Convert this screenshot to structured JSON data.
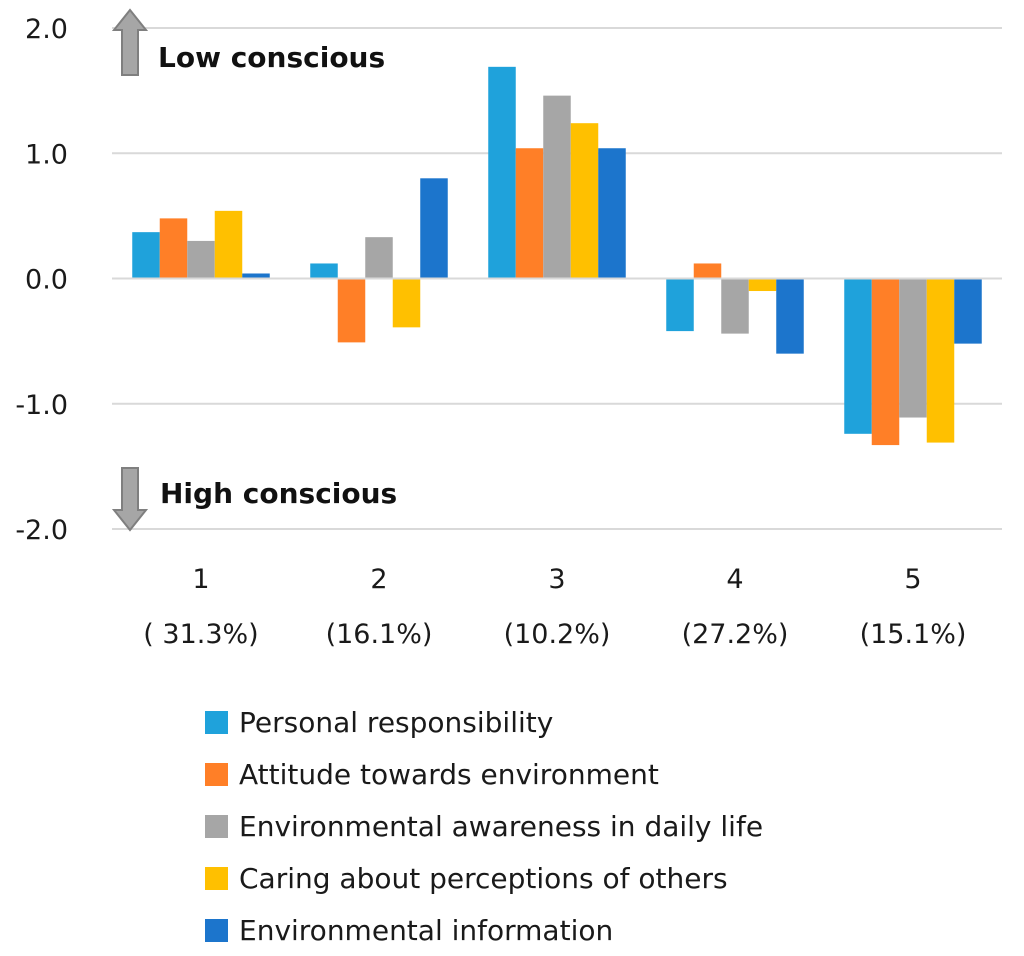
{
  "chart_data": {
    "type": "bar",
    "title": "",
    "xlabel": "",
    "ylabel": "",
    "ylim": [
      -2.0,
      2.0
    ],
    "yticks": [
      2.0,
      1.0,
      0.0,
      -1.0,
      -2.0
    ],
    "ytick_labels": [
      "2.0",
      "1.0",
      "0.0",
      "-1.0",
      "-2.0"
    ],
    "grid": true,
    "legend_position": "bottom",
    "categories": [
      {
        "name": "1",
        "share": "( 31.3%)"
      },
      {
        "name": "2",
        "share": "(16.1%)"
      },
      {
        "name": "3",
        "share": "(10.2%)"
      },
      {
        "name": "4",
        "share": "(27.2%)"
      },
      {
        "name": "5",
        "share": "(15.1%)"
      }
    ],
    "series": [
      {
        "name": "Personal responsibility",
        "color": "#1FA2DB",
        "values": [
          0.37,
          0.12,
          1.69,
          -0.42,
          -1.24
        ]
      },
      {
        "name": "Attitude towards environment",
        "color": "#FF7F27",
        "values": [
          0.48,
          -0.51,
          1.04,
          0.12,
          -1.33
        ]
      },
      {
        "name": "Environmental awareness in daily life",
        "color": "#A6A6A6",
        "values": [
          0.3,
          0.33,
          1.46,
          -0.44,
          -1.11
        ]
      },
      {
        "name": "Caring about perceptions of others",
        "color": "#FFC000",
        "values": [
          0.54,
          -0.39,
          1.24,
          -0.1,
          -1.31
        ]
      },
      {
        "name": "Environmental information",
        "color": "#1C75CC",
        "values": [
          0.04,
          0.8,
          1.04,
          -0.6,
          -0.52
        ]
      }
    ],
    "annotations": {
      "top": {
        "text": "Low conscious",
        "arrow": "up"
      },
      "bottom": {
        "text": "High conscious",
        "arrow": "down"
      }
    },
    "arrow_color": "#7F7F7F",
    "grid_color": "#D9D9D9"
  }
}
